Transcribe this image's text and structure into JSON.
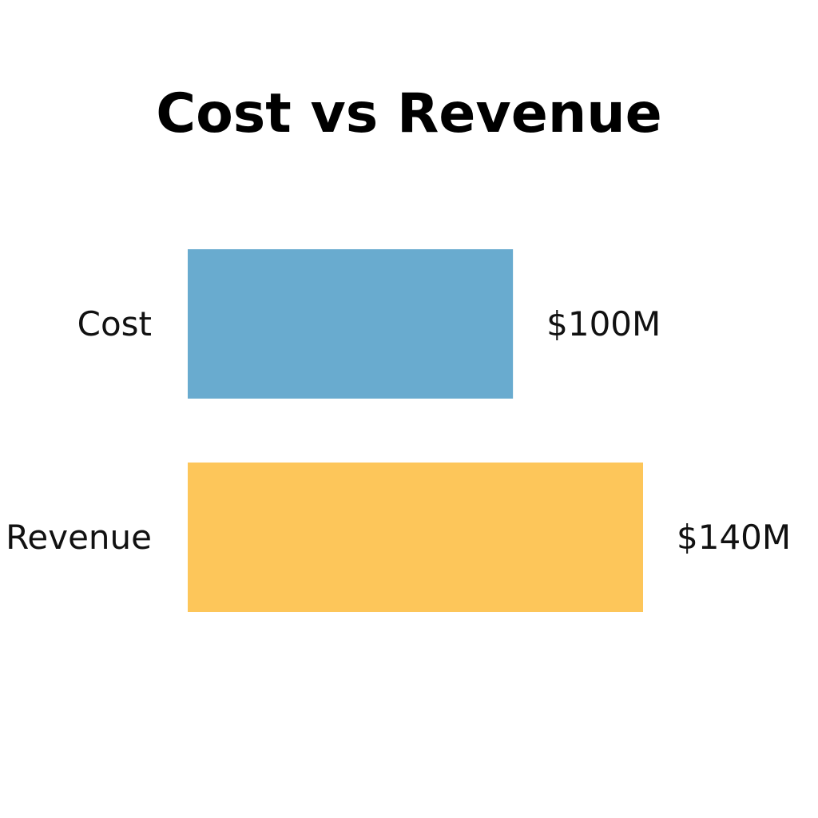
{
  "chart_data": {
    "type": "bar",
    "orientation": "horizontal",
    "title": "Cost vs Revenue",
    "categories": [
      "Cost",
      "Revenue"
    ],
    "values": [
      100,
      140
    ],
    "value_labels": [
      "$100M",
      "$140M"
    ],
    "colors": [
      "#69abcf",
      "#fdc65a"
    ],
    "xlim": [
      0,
      140
    ],
    "grid": false,
    "legend": "none"
  }
}
